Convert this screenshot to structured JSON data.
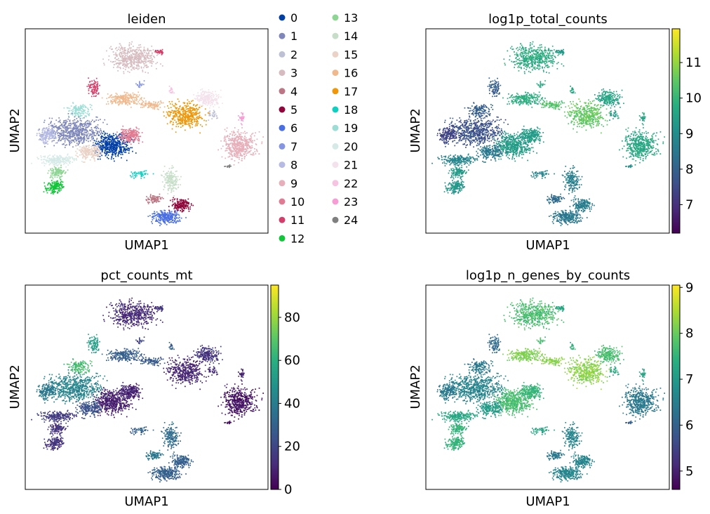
{
  "figure": {
    "background": "#ffffff"
  },
  "chart_data": [
    {
      "type": "scatter",
      "embedding": "UMAP",
      "title": "leiden",
      "xlabel": "UMAP1",
      "ylabel": "UMAP2",
      "grid": false,
      "color_mode": "categorical",
      "legend_position": "right",
      "categories": [
        {
          "label": "0",
          "color": "#023fa5"
        },
        {
          "label": "1",
          "color": "#7d87b9"
        },
        {
          "label": "2",
          "color": "#bec1d4"
        },
        {
          "label": "3",
          "color": "#d6bcc0"
        },
        {
          "label": "4",
          "color": "#bb7784"
        },
        {
          "label": "5",
          "color": "#8e063b"
        },
        {
          "label": "6",
          "color": "#4a6fe3"
        },
        {
          "label": "7",
          "color": "#8595e1"
        },
        {
          "label": "8",
          "color": "#b5bbe3"
        },
        {
          "label": "9",
          "color": "#e6afb9"
        },
        {
          "label": "10",
          "color": "#e07b91"
        },
        {
          "label": "11",
          "color": "#d33f6a"
        },
        {
          "label": "12",
          "color": "#11c638"
        },
        {
          "label": "13",
          "color": "#8dd593"
        },
        {
          "label": "14",
          "color": "#c6dec7"
        },
        {
          "label": "15",
          "color": "#ead3c6"
        },
        {
          "label": "16",
          "color": "#f0b98d"
        },
        {
          "label": "17",
          "color": "#ef9708"
        },
        {
          "label": "18",
          "color": "#0fcfc0"
        },
        {
          "label": "19",
          "color": "#9cded6"
        },
        {
          "label": "20",
          "color": "#d5eae7"
        },
        {
          "label": "21",
          "color": "#f3e1eb"
        },
        {
          "label": "22",
          "color": "#f6c4e1"
        },
        {
          "label": "23",
          "color": "#f79cd4"
        },
        {
          "label": "24",
          "color": "#7f7f7f"
        }
      ]
    },
    {
      "type": "scatter",
      "embedding": "UMAP",
      "title": "log1p_total_counts",
      "xlabel": "UMAP1",
      "ylabel": "UMAP2",
      "grid": false,
      "color_mode": "continuous",
      "colormap": "viridis",
      "colorbar_range": [
        6.2,
        11.95
      ],
      "colorbar_ticks": [
        "7",
        "8",
        "9",
        "10",
        "11"
      ]
    },
    {
      "type": "scatter",
      "embedding": "UMAP",
      "title": "pct_counts_mt",
      "xlabel": "UMAP1",
      "ylabel": "UMAP2",
      "grid": false,
      "color_mode": "continuous",
      "colormap": "viridis",
      "colorbar_range": [
        0,
        95
      ],
      "colorbar_ticks": [
        "0",
        "20",
        "40",
        "60",
        "80"
      ]
    },
    {
      "type": "scatter",
      "embedding": "UMAP",
      "title": "log1p_n_genes_by_counts",
      "xlabel": "UMAP1",
      "ylabel": "UMAP2",
      "grid": false,
      "color_mode": "continuous",
      "colormap": "viridis",
      "colorbar_range": [
        4.6,
        9.05
      ],
      "colorbar_ticks": [
        "5",
        "6",
        "7",
        "8",
        "9"
      ]
    }
  ]
}
